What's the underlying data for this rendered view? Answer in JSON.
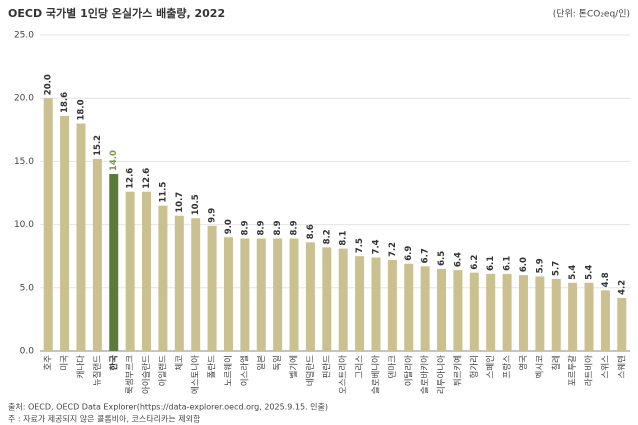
{
  "chart_data": {
    "type": "bar",
    "title": "OECD 국가별 1인당 온실가스 배출량, 2022",
    "unit_label": "(단위: 톤CO₂eq/인)",
    "categories": [
      "호주",
      "미국",
      "캐나다",
      "뉴질랜드",
      "한국",
      "룩셈부르크",
      "아이슬란드",
      "아일랜드",
      "체코",
      "에스토니아",
      "폴란드",
      "노르웨이",
      "이스라엘",
      "일본",
      "독일",
      "벨기에",
      "네덜란드",
      "핀란드",
      "오스트리아",
      "그리스",
      "슬로베니아",
      "덴마크",
      "이탈리아",
      "슬로바키아",
      "리투아니아",
      "튀르키예",
      "헝가리",
      "스페인",
      "프랑스",
      "영국",
      "멕시코",
      "칠레",
      "포르투갈",
      "라트비아",
      "스위스",
      "스웨덴"
    ],
    "values": [
      20.0,
      18.6,
      18.0,
      15.2,
      14.0,
      12.6,
      12.6,
      11.5,
      10.7,
      10.5,
      9.9,
      9.0,
      8.9,
      8.9,
      8.9,
      8.9,
      8.6,
      8.2,
      8.1,
      7.5,
      7.4,
      7.2,
      6.9,
      6.7,
      6.5,
      6.4,
      6.2,
      6.1,
      6.1,
      6.0,
      5.9,
      5.7,
      5.4,
      5.4,
      4.8,
      4.2
    ],
    "value_labels": [
      "20.0",
      "18.6",
      "18.0",
      "15.2",
      "14.0",
      "12.6",
      "12.6",
      "11.5",
      "10.7",
      "10.5",
      "9.9",
      "9.0",
      "8.9",
      "8.9",
      "8.9",
      "8.9",
      "8.6",
      "8.2",
      "8.1",
      "7.5",
      "7.4",
      "7.2",
      "6.9",
      "6.7",
      "6.5",
      "6.4",
      "6.2",
      "6.1",
      "6.1",
      "6.0",
      "5.9",
      "5.7",
      "5.4",
      "5.4",
      "4.8",
      "4.2"
    ],
    "colors": [
      "#cbc08f",
      "#cbc08f",
      "#cbc08f",
      "#cbc08f",
      "#5b7b3a",
      "#cbc08f",
      "#cbc08f",
      "#cbc08f",
      "#cbc08f",
      "#cbc08f",
      "#cbc08f",
      "#cbc08f",
      "#cbc08f",
      "#cbc08f",
      "#cbc08f",
      "#cbc08f",
      "#cbc08f",
      "#cbc08f",
      "#cbc08f",
      "#cbc08f",
      "#cbc08f",
      "#cbc08f",
      "#cbc08f",
      "#cbc08f",
      "#cbc08f",
      "#cbc08f",
      "#cbc08f",
      "#cbc08f",
      "#cbc08f",
      "#cbc08f",
      "#cbc08f",
      "#cbc08f",
      "#cbc08f",
      "#cbc08f",
      "#cbc08f",
      "#cbc08f"
    ],
    "ylim": [
      0,
      25
    ],
    "yticks": [
      {
        "value": 0,
        "label": "0.0"
      },
      {
        "value": 5,
        "label": "5.0"
      },
      {
        "value": 10,
        "label": "10.0"
      },
      {
        "value": 15,
        "label": "15.0"
      },
      {
        "value": 20,
        "label": "20.0"
      },
      {
        "value": 25,
        "label": "25.0"
      }
    ],
    "grid": true,
    "source": "출처: OECD, OECD Data Explorer(https://data-explorer.oecd.org, 2025.9.15. 인출)",
    "note": "주   : 자료가 제공되지 않은 콜롬비아, 코스타리카는 제외함"
  }
}
